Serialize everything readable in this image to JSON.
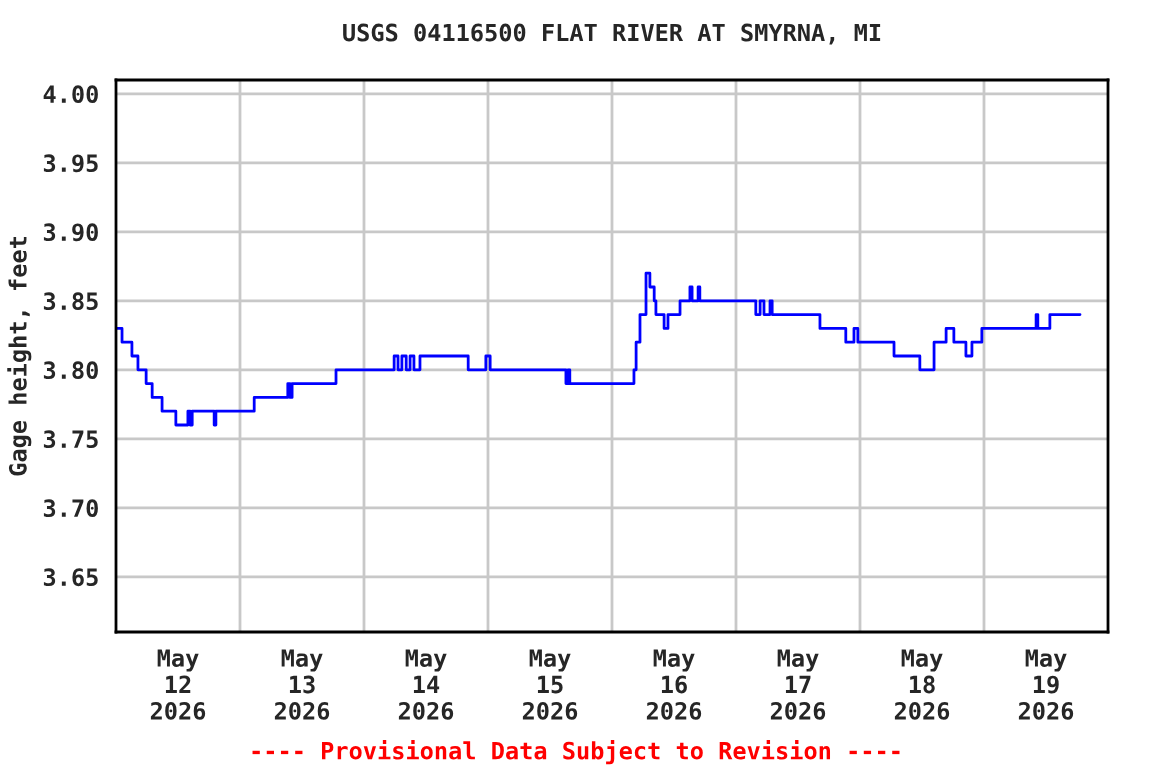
{
  "chart_data": {
    "type": "step",
    "title": "USGS 04116500 FLAT RIVER AT SMYRNA, MI",
    "ylabel": "Gage height, feet",
    "annotations": [
      "---- Provisional Data Subject to Revision ----"
    ],
    "xlim": [
      "2026-05-12T00:00",
      "2026-05-20T00:00"
    ],
    "xticks": [
      {
        "value": "2026-05-12T12:00",
        "label": "May\n12\n2026"
      },
      {
        "value": "2026-05-13T00:00",
        "label": null
      },
      {
        "value": "2026-05-13T12:00",
        "label": "May\n13\n2026"
      },
      {
        "value": "2026-05-14T00:00",
        "label": null
      },
      {
        "value": "2026-05-14T12:00",
        "label": "May\n14\n2026"
      },
      {
        "value": "2026-05-15T00:00",
        "label": null
      },
      {
        "value": "2026-05-15T12:00",
        "label": "May\n15\n2026"
      },
      {
        "value": "2026-05-16T00:00",
        "label": null
      },
      {
        "value": "2026-05-16T12:00",
        "label": "May\n16\n2026"
      },
      {
        "value": "2026-05-17T00:00",
        "label": null
      },
      {
        "value": "2026-05-17T12:00",
        "label": "May\n17\n2026"
      },
      {
        "value": "2026-05-18T00:00",
        "label": null
      },
      {
        "value": "2026-05-18T12:00",
        "label": "May\n18\n2026"
      },
      {
        "value": "2026-05-19T00:00",
        "label": null
      },
      {
        "value": "2026-05-19T12:00",
        "label": "May\n19\n2026"
      }
    ],
    "ylim": [
      3.61,
      4.01
    ],
    "yticks": [
      {
        "value": 3.65,
        "label": "3.65"
      },
      {
        "value": 3.7,
        "label": "3.70"
      },
      {
        "value": 3.75,
        "label": "3.75"
      },
      {
        "value": 3.8,
        "label": "3.80"
      },
      {
        "value": 3.85,
        "label": "3.85"
      },
      {
        "value": 3.9,
        "label": "3.90"
      },
      {
        "value": 3.95,
        "label": "3.95"
      },
      {
        "value": 4.0,
        "label": "4.00"
      }
    ],
    "grid": true,
    "series": [
      {
        "color": "#0000ff",
        "x": [
          "2026-05-12T00:00",
          "2026-05-12T01:10",
          "2026-05-12T03:05",
          "2026-05-12T04:15",
          "2026-05-12T05:50",
          "2026-05-12T07:00",
          "2026-05-12T08:55",
          "2026-05-12T11:35",
          "2026-05-12T13:55",
          "2026-05-12T14:20",
          "2026-05-12T14:45",
          "2026-05-12T19:00",
          "2026-05-12T19:20",
          "2026-05-13T02:45",
          "2026-05-13T09:15",
          "2026-05-13T09:40",
          "2026-05-13T10:05",
          "2026-05-13T18:35",
          "2026-05-14T05:50",
          "2026-05-14T06:35",
          "2026-05-14T07:20",
          "2026-05-14T08:10",
          "2026-05-14T08:55",
          "2026-05-14T09:40",
          "2026-05-14T10:50",
          "2026-05-14T20:10",
          "2026-05-14T23:35",
          "2026-05-15T00:25",
          "2026-05-15T15:05",
          "2026-05-15T15:30",
          "2026-05-15T15:50",
          "2026-05-16T04:15",
          "2026-05-16T04:40",
          "2026-05-16T05:25",
          "2026-05-16T06:35",
          "2026-05-16T07:20",
          "2026-05-16T08:10",
          "2026-05-16T08:30",
          "2026-05-16T10:05",
          "2026-05-16T10:50",
          "2026-05-16T13:10",
          "2026-05-16T15:05",
          "2026-05-16T15:30",
          "2026-05-16T16:40",
          "2026-05-16T17:00",
          "2026-05-17T03:50",
          "2026-05-17T04:40",
          "2026-05-17T05:25",
          "2026-05-17T06:35",
          "2026-05-17T07:00",
          "2026-05-17T16:15",
          "2026-05-17T21:15",
          "2026-05-17T22:50",
          "2026-05-17T23:35",
          "2026-05-18T06:35",
          "2026-05-18T11:35",
          "2026-05-18T14:20",
          "2026-05-18T16:40",
          "2026-05-18T18:10",
          "2026-05-18T20:30",
          "2026-05-18T21:40",
          "2026-05-18T23:35",
          "2026-05-19T10:05",
          "2026-05-19T10:25",
          "2026-05-19T12:45",
          "2026-05-19T18:35"
        ],
        "values": [
          3.83,
          3.82,
          3.81,
          3.8,
          3.79,
          3.78,
          3.77,
          3.76,
          3.77,
          3.76,
          3.77,
          3.76,
          3.77,
          3.78,
          3.79,
          3.78,
          3.79,
          3.8,
          3.81,
          3.8,
          3.81,
          3.8,
          3.81,
          3.8,
          3.81,
          3.8,
          3.81,
          3.8,
          3.79,
          3.8,
          3.79,
          3.8,
          3.82,
          3.84,
          3.87,
          3.86,
          3.85,
          3.84,
          3.83,
          3.84,
          3.85,
          3.86,
          3.85,
          3.86,
          3.85,
          3.84,
          3.85,
          3.84,
          3.85,
          3.84,
          3.83,
          3.82,
          3.83,
          3.82,
          3.81,
          3.8,
          3.82,
          3.83,
          3.82,
          3.81,
          3.82,
          3.83,
          3.84,
          3.83,
          3.84,
          3.84
        ]
      }
    ]
  }
}
